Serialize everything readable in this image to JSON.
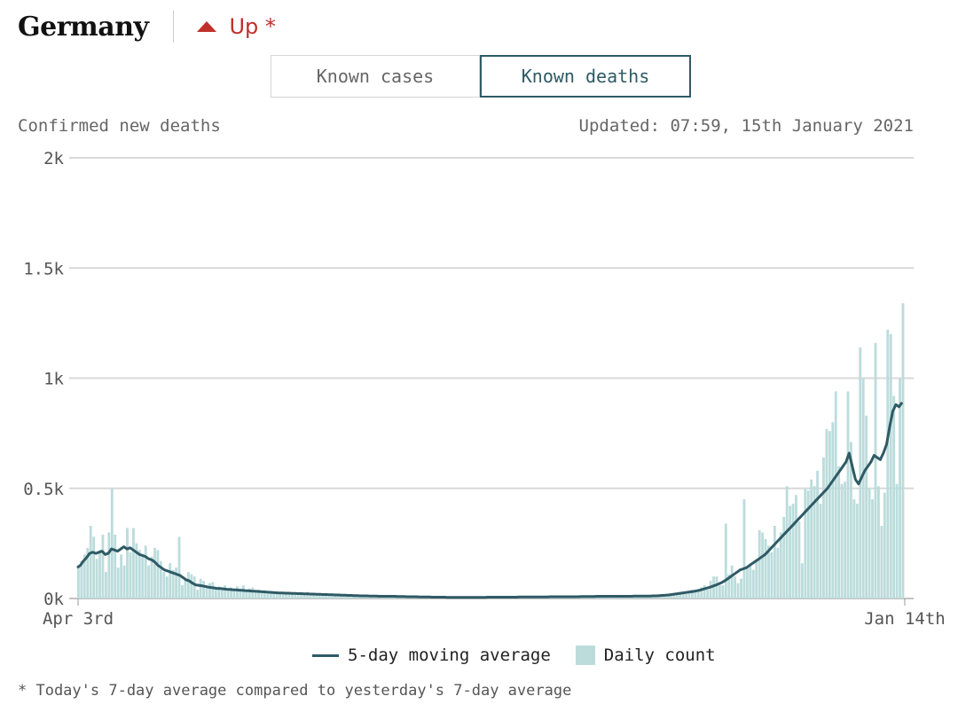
{
  "header": {
    "country": "Germany",
    "trend_label": "Up *",
    "trend_color": "#c0302b",
    "trend_icon": "triangle-up-icon"
  },
  "toggle": {
    "cases_label": "Known cases",
    "deaths_label": "Known deaths",
    "selected": "Known deaths"
  },
  "subhead": {
    "left": "Confirmed new deaths",
    "updated": "Updated: 07:59, 15th January 2021"
  },
  "legend": {
    "line_label": "5-day moving average",
    "bar_label": "Daily count"
  },
  "footnote": "* Today's 7-day average compared to yesterday's 7-day average",
  "colors": {
    "line": "#2f5a66",
    "bars": "#bcdcdc",
    "grid": "#d9d9d9",
    "accent": "#c0302b"
  },
  "chart_data": {
    "type": "bar",
    "x_start": "Apr 3rd",
    "x_end": "Jan 14th",
    "x_tick_labels": [
      "Apr 3rd",
      "Jan 14th"
    ],
    "y_tick_labels": [
      "0k",
      "0.5k",
      "1k",
      "1.5k",
      "2k"
    ],
    "y_ticks": [
      0,
      500,
      1000,
      1500,
      2000
    ],
    "ylim": [
      0,
      2000
    ],
    "grid": true,
    "series": [
      {
        "name": "Daily count",
        "kind": "bar",
        "values": [
          150,
          170,
          200,
          230,
          330,
          280,
          180,
          220,
          290,
          120,
          300,
          500,
          290,
          140,
          200,
          150,
          320,
          210,
          320,
          250,
          220,
          200,
          240,
          150,
          190,
          230,
          220,
          170,
          120,
          100,
          160,
          130,
          140,
          280,
          60,
          90,
          120,
          110,
          100,
          40,
          90,
          80,
          60,
          70,
          75,
          50,
          55,
          40,
          60,
          45,
          50,
          40,
          55,
          45,
          60,
          40,
          45,
          50,
          30,
          40,
          35,
          30,
          30,
          30,
          25,
          30,
          25,
          20,
          25,
          30,
          20,
          20,
          15,
          25,
          20,
          30,
          20,
          15,
          20,
          15,
          15,
          20,
          10,
          15,
          10,
          15,
          10,
          10,
          10,
          10,
          10,
          15,
          10,
          10,
          10,
          5,
          10,
          10,
          10,
          5,
          10,
          10,
          5,
          10,
          5,
          5,
          5,
          10,
          5,
          5,
          5,
          5,
          5,
          5,
          5,
          5,
          5,
          10,
          5,
          5,
          5,
          5,
          5,
          5,
          5,
          5,
          5,
          5,
          5,
          5,
          5,
          5,
          5,
          5,
          5,
          5,
          5,
          10,
          5,
          5,
          5,
          5,
          5,
          5,
          5,
          5,
          5,
          5,
          5,
          5,
          5,
          5,
          5,
          5,
          5,
          5,
          5,
          5,
          5,
          5,
          5,
          5,
          5,
          5,
          5,
          5,
          5,
          5,
          5,
          5,
          5,
          5,
          5,
          5,
          5,
          5,
          5,
          5,
          5,
          10,
          10,
          10,
          10,
          10,
          10,
          10,
          10,
          10,
          10,
          10,
          10,
          10,
          10,
          15,
          20,
          20,
          20,
          30,
          30,
          20,
          30,
          40,
          40,
          40,
          50,
          60,
          40,
          80,
          100,
          100,
          60,
          60,
          340,
          110,
          150,
          100,
          70,
          90,
          450,
          140,
          160,
          130,
          180,
          310,
          300,
          270,
          240,
          210,
          330,
          230,
          300,
          370,
          510,
          420,
          430,
          470,
          350,
          160,
          500,
          490,
          540,
          510,
          580,
          430,
          640,
          770,
          760,
          800,
          940,
          600,
          520,
          530,
          940,
          710,
          450,
          430,
          1140,
          1000,
          830,
          500,
          450,
          1160,
          510,
          330,
          480,
          1220,
          1200,
          920,
          520,
          1000,
          1340
        ]
      },
      {
        "name": "5-day moving average",
        "kind": "line",
        "values": [
          140,
          150,
          170,
          185,
          205,
          210,
          205,
          210,
          215,
          200,
          205,
          225,
          220,
          215,
          225,
          235,
          225,
          230,
          220,
          210,
          200,
          195,
          190,
          180,
          175,
          165,
          150,
          140,
          130,
          125,
          120,
          115,
          110,
          105,
          95,
          85,
          80,
          70,
          62,
          60,
          58,
          55,
          52,
          50,
          48,
          46,
          45,
          44,
          42,
          41,
          40,
          39,
          38,
          37,
          36,
          35,
          34,
          33,
          32,
          31,
          30,
          29,
          28,
          27,
          26,
          25,
          25,
          24,
          24,
          23,
          23,
          22,
          22,
          21,
          21,
          20,
          20,
          19,
          19,
          18,
          18,
          17,
          17,
          16,
          16,
          15,
          15,
          14,
          14,
          13,
          13,
          12,
          12,
          12,
          11,
          11,
          11,
          10,
          10,
          10,
          10,
          10,
          10,
          9,
          9,
          9,
          8,
          8,
          8,
          8,
          7,
          7,
          7,
          7,
          6,
          6,
          6,
          6,
          6,
          5,
          5,
          5,
          5,
          5,
          5,
          5,
          5,
          5,
          5,
          5,
          5,
          5,
          6,
          6,
          6,
          6,
          6,
          6,
          6,
          6,
          6,
          6,
          7,
          7,
          7,
          7,
          7,
          7,
          7,
          7,
          7,
          7,
          8,
          8,
          8,
          8,
          8,
          8,
          8,
          8,
          8,
          8,
          9,
          9,
          9,
          9,
          9,
          10,
          10,
          10,
          10,
          10,
          10,
          10,
          10,
          10,
          10,
          10,
          10,
          11,
          11,
          11,
          11,
          11,
          11,
          12,
          12,
          13,
          14,
          15,
          16,
          18,
          20,
          22,
          24,
          26,
          28,
          30,
          32,
          35,
          38,
          42,
          46,
          50,
          55,
          60,
          66,
          72,
          80,
          90,
          100,
          110,
          120,
          130,
          135,
          140,
          150,
          160,
          170,
          180,
          190,
          200,
          215,
          230,
          245,
          260,
          275,
          290,
          305,
          320,
          335,
          350,
          365,
          380,
          395,
          410,
          425,
          440,
          455,
          470,
          485,
          500,
          520,
          540,
          560,
          580,
          600,
          620,
          660,
          600,
          540,
          520,
          550,
          580,
          600,
          620,
          650,
          640,
          630,
          660,
          700,
          780,
          850,
          880,
          870,
          890
        ]
      }
    ]
  }
}
